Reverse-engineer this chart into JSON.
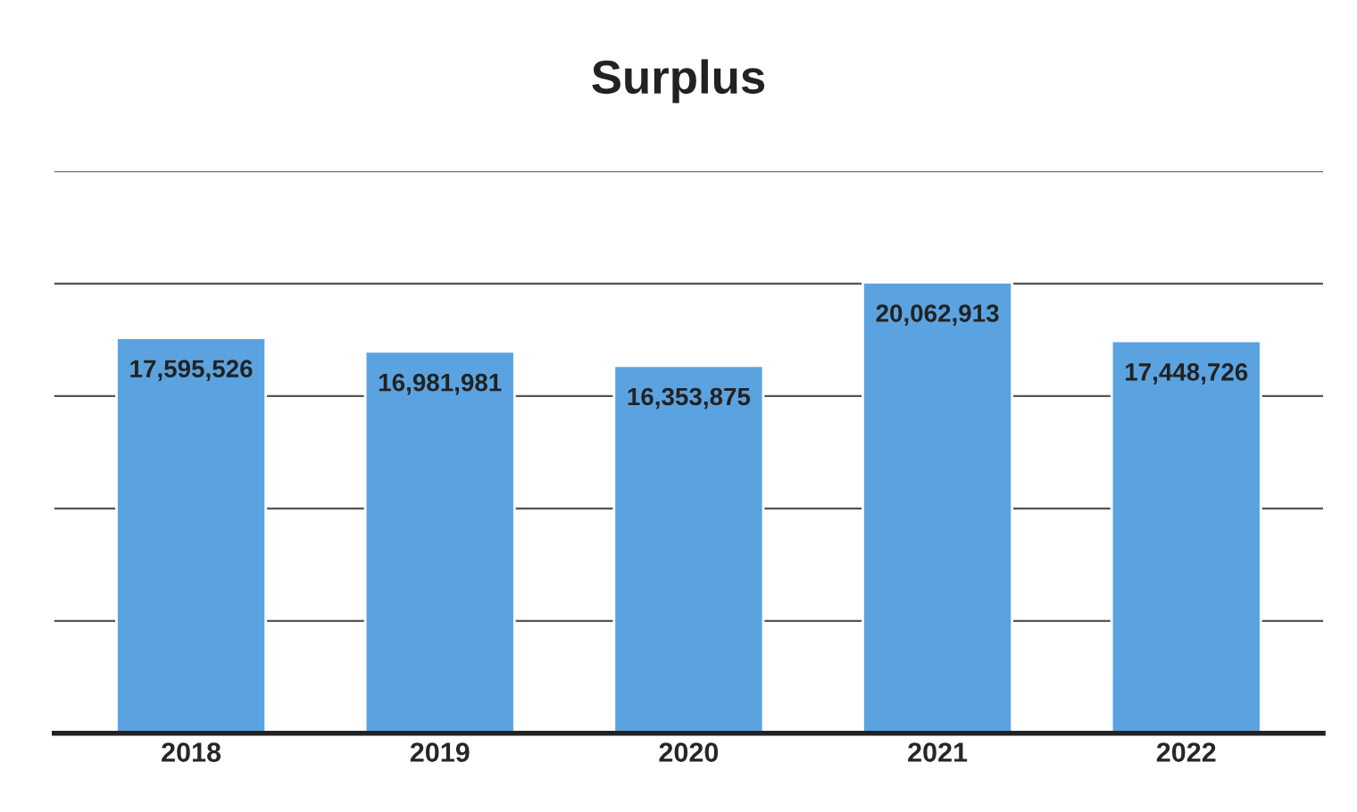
{
  "chart_data": {
    "type": "bar",
    "title": "Surplus",
    "categories": [
      "2018",
      "2019",
      "2020",
      "2021",
      "2022"
    ],
    "values": [
      17595526,
      16981981,
      16353875,
      20062913,
      17448726
    ],
    "color": "#5ba3e0",
    "value_labels": [
      "17,595,526",
      "16,981,981",
      "16,353,875",
      "20,062,913",
      "17,448,726"
    ],
    "ylim": [
      0,
      25000000
    ],
    "yticks": [
      {
        "value": 0,
        "label": null
      },
      {
        "value": 5000000,
        "label": null
      },
      {
        "value": 10000000,
        "label": null
      },
      {
        "value": 15000000,
        "label": null
      },
      {
        "value": 20000000,
        "label": null
      },
      {
        "value": 25000000,
        "label": null
      }
    ],
    "grid": "y",
    "tick_labels": "x",
    "legend": false
  }
}
